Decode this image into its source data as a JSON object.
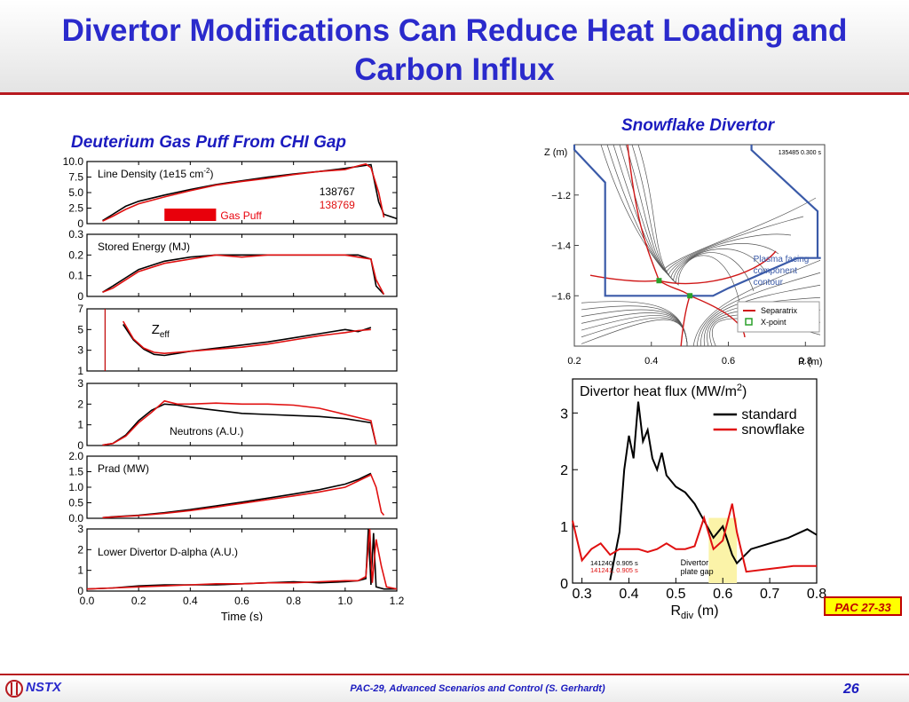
{
  "slide": {
    "title_line1": "Divertor Modifications Can Reduce Heat Loading and",
    "title_line2": "Carbon Influx",
    "left_heading": "Deuterium Gas Puff From CHI Gap",
    "right_heading": "Snowflake Divertor",
    "badge": "PAC 27-33",
    "footer_logo": "NSTX",
    "footer_text": "PAC-29, Advanced Scenarios and Control (S. Gerhardt)",
    "page_number": "26"
  },
  "colors": {
    "black_trace": "#000000",
    "red_trace": "#e01010",
    "title": "#2a2acc",
    "accent": "#b7191f",
    "contour": "#3a5aa8"
  },
  "chart_data": [
    {
      "type": "line",
      "id": "line-density",
      "title": "Line Density (1e15 cm",
      "title_superscript": "-2",
      "title_suffix": ")",
      "ylim": [
        0,
        10
      ],
      "yticks": [
        "10.0",
        "7.5",
        "5.0",
        "2.5",
        "0"
      ],
      "ytick_values": [
        10,
        7.5,
        5,
        2.5,
        0
      ],
      "annotation": "Gas Puff",
      "gas_puff_range": [
        0.3,
        0.5
      ],
      "legend": [
        "138767",
        "138769"
      ],
      "series": [
        {
          "name": "138767",
          "color": "#000000",
          "x": [
            0.06,
            0.1,
            0.15,
            0.2,
            0.3,
            0.4,
            0.5,
            0.6,
            0.7,
            0.8,
            0.9,
            1.0,
            1.05,
            1.1,
            1.13,
            1.15,
            1.2
          ],
          "y": [
            0.5,
            1.5,
            2.8,
            3.6,
            4.6,
            5.5,
            6.3,
            6.9,
            7.5,
            8.0,
            8.4,
            8.9,
            9.2,
            9.5,
            3.5,
            1.5,
            0.8
          ]
        },
        {
          "name": "138769",
          "color": "#e01010",
          "x": [
            0.06,
            0.1,
            0.15,
            0.2,
            0.3,
            0.4,
            0.5,
            0.6,
            0.7,
            0.8,
            0.9,
            1.0,
            1.05,
            1.08,
            1.1,
            1.13,
            1.15
          ],
          "y": [
            0.4,
            1.2,
            2.3,
            3.2,
            4.3,
            5.3,
            6.2,
            6.8,
            7.3,
            7.9,
            8.4,
            8.7,
            9.3,
            9.6,
            9.0,
            5.0,
            1.0
          ]
        }
      ]
    },
    {
      "type": "line",
      "id": "stored-energy",
      "title": "Stored Energy (MJ)",
      "ylim": [
        0,
        0.3
      ],
      "yticks": [
        "0.3",
        "0.2",
        "0.1",
        "0"
      ],
      "ytick_values": [
        0.3,
        0.2,
        0.1,
        0
      ],
      "series": [
        {
          "name": "138767",
          "color": "#000000",
          "x": [
            0.06,
            0.1,
            0.15,
            0.2,
            0.3,
            0.4,
            0.5,
            0.6,
            0.7,
            0.8,
            0.9,
            1.0,
            1.05,
            1.1,
            1.12,
            1.15
          ],
          "y": [
            0.02,
            0.05,
            0.09,
            0.13,
            0.17,
            0.19,
            0.2,
            0.2,
            0.2,
            0.2,
            0.2,
            0.2,
            0.2,
            0.18,
            0.05,
            0.01
          ]
        },
        {
          "name": "138769",
          "color": "#e01010",
          "x": [
            0.06,
            0.1,
            0.15,
            0.2,
            0.3,
            0.4,
            0.5,
            0.6,
            0.7,
            0.8,
            0.9,
            1.0,
            1.05,
            1.1,
            1.12,
            1.15
          ],
          "y": [
            0.02,
            0.04,
            0.08,
            0.12,
            0.16,
            0.18,
            0.2,
            0.19,
            0.2,
            0.2,
            0.2,
            0.2,
            0.19,
            0.18,
            0.08,
            0.01
          ]
        }
      ]
    },
    {
      "type": "line",
      "id": "zeff",
      "title": "Z",
      "title_subscript": "eff",
      "ylim": [
        1,
        7
      ],
      "yticks": [
        "7",
        "5",
        "3",
        "1"
      ],
      "ytick_values": [
        7,
        5,
        3,
        1
      ],
      "series": [
        {
          "name": "138767",
          "color": "#000000",
          "x": [
            0.14,
            0.18,
            0.22,
            0.26,
            0.3,
            0.35,
            0.4,
            0.5,
            0.6,
            0.7,
            0.8,
            0.9,
            1.0,
            1.05,
            1.1
          ],
          "y": [
            5.5,
            4.0,
            3.1,
            2.6,
            2.5,
            2.7,
            2.9,
            3.2,
            3.5,
            3.8,
            4.2,
            4.6,
            5.0,
            4.8,
            5.2
          ]
        },
        {
          "name": "138769",
          "color": "#e01010",
          "x": [
            0.14,
            0.18,
            0.22,
            0.26,
            0.3,
            0.35,
            0.4,
            0.5,
            0.6,
            0.7,
            0.8,
            0.9,
            1.0,
            1.05,
            1.1
          ],
          "y": [
            5.8,
            4.1,
            3.2,
            2.8,
            2.7,
            2.8,
            2.9,
            3.1,
            3.3,
            3.6,
            4.0,
            4.4,
            4.7,
            4.9,
            5.0
          ]
        }
      ]
    },
    {
      "type": "line",
      "id": "neutrons",
      "title": "Neutrons (A.U.)",
      "ylim": [
        0,
        3
      ],
      "yticks": [
        "3",
        "2",
        "1",
        "0"
      ],
      "ytick_values": [
        3,
        2,
        1,
        0
      ],
      "series": [
        {
          "name": "138767",
          "color": "#000000",
          "x": [
            0.06,
            0.1,
            0.15,
            0.2,
            0.25,
            0.3,
            0.35,
            0.4,
            0.5,
            0.6,
            0.7,
            0.8,
            0.9,
            1.0,
            1.05,
            1.1,
            1.12
          ],
          "y": [
            0.02,
            0.1,
            0.5,
            1.2,
            1.7,
            2.0,
            1.95,
            1.85,
            1.7,
            1.55,
            1.5,
            1.45,
            1.4,
            1.3,
            1.2,
            1.1,
            0.05
          ]
        },
        {
          "name": "138769",
          "color": "#e01010",
          "x": [
            0.06,
            0.1,
            0.15,
            0.2,
            0.25,
            0.3,
            0.35,
            0.4,
            0.5,
            0.6,
            0.7,
            0.8,
            0.9,
            1.0,
            1.05,
            1.1,
            1.12
          ],
          "y": [
            0.02,
            0.1,
            0.45,
            1.1,
            1.6,
            2.15,
            2.0,
            2.0,
            2.05,
            2.0,
            2.0,
            1.95,
            1.8,
            1.5,
            1.35,
            1.2,
            0.05
          ]
        }
      ]
    },
    {
      "type": "line",
      "id": "prad",
      "title": "Prad (MW)",
      "ylim": [
        0,
        2
      ],
      "yticks": [
        "2.0",
        "1.5",
        "1.0",
        "0.5",
        "0.0"
      ],
      "ytick_values": [
        2,
        1.5,
        1,
        0.5,
        0
      ],
      "series": [
        {
          "name": "138767",
          "color": "#000000",
          "x": [
            0.06,
            0.1,
            0.2,
            0.3,
            0.4,
            0.5,
            0.6,
            0.7,
            0.8,
            0.9,
            1.0,
            1.05,
            1.1
          ],
          "y": [
            0.02,
            0.05,
            0.1,
            0.18,
            0.28,
            0.4,
            0.52,
            0.65,
            0.78,
            0.92,
            1.1,
            1.25,
            1.45
          ]
        },
        {
          "name": "138769",
          "color": "#e01010",
          "x": [
            0.06,
            0.1,
            0.2,
            0.3,
            0.4,
            0.5,
            0.6,
            0.7,
            0.8,
            0.9,
            1.0,
            1.05,
            1.1,
            1.12,
            1.14,
            1.15
          ],
          "y": [
            0.02,
            0.04,
            0.09,
            0.16,
            0.25,
            0.36,
            0.48,
            0.6,
            0.72,
            0.85,
            1.0,
            1.2,
            1.4,
            1.0,
            0.2,
            0.1
          ]
        }
      ]
    },
    {
      "type": "line",
      "id": "d-alpha",
      "title": "Lower Divertor D-alpha (A.U.)",
      "ylim": [
        0,
        3
      ],
      "yticks": [
        "3",
        "2",
        "1",
        "0"
      ],
      "ytick_values": [
        3,
        2,
        1,
        0
      ],
      "xlim": [
        0,
        1.2
      ],
      "xticks": [
        "0.0",
        "0.2",
        "0.4",
        "0.6",
        "0.8",
        "1.0",
        "1.2"
      ],
      "xtick_values": [
        0,
        0.2,
        0.4,
        0.6,
        0.8,
        1.0,
        1.2
      ],
      "xlabel": "Time (s)",
      "series": [
        {
          "name": "138767",
          "color": "#000000",
          "x": [
            0.0,
            0.1,
            0.2,
            0.3,
            0.4,
            0.5,
            0.6,
            0.7,
            0.8,
            0.9,
            1.0,
            1.05,
            1.08,
            1.09,
            1.1,
            1.11,
            1.12,
            1.15,
            1.2
          ],
          "y": [
            0.1,
            0.15,
            0.25,
            0.3,
            0.3,
            0.3,
            0.35,
            0.4,
            0.45,
            0.4,
            0.45,
            0.5,
            0.6,
            3.0,
            0.3,
            2.8,
            0.2,
            0.1,
            0.1
          ]
        },
        {
          "name": "138769",
          "color": "#e01010",
          "x": [
            0.0,
            0.1,
            0.2,
            0.3,
            0.4,
            0.5,
            0.6,
            0.7,
            0.8,
            0.9,
            1.0,
            1.05,
            1.08,
            1.095,
            1.105,
            1.12,
            1.14,
            1.16,
            1.2
          ],
          "y": [
            0.1,
            0.15,
            0.2,
            0.25,
            0.3,
            0.35,
            0.35,
            0.4,
            0.4,
            0.45,
            0.5,
            0.5,
            0.7,
            3.0,
            0.4,
            2.5,
            1.2,
            0.2,
            0.1
          ]
        }
      ]
    },
    {
      "type": "line",
      "id": "snowflake-equilibrium",
      "shot_label": "135485 0.300 s",
      "xlabel": "R (m)",
      "ylabel": "Z (m)",
      "xlim": [
        0.2,
        0.85
      ],
      "ylim": [
        -1.8,
        -1.0
      ],
      "xticks": [
        "0.2",
        "0.4",
        "0.6",
        "0.8"
      ],
      "xtick_values": [
        0.2,
        0.4,
        0.6,
        0.8
      ],
      "yticks": [
        "−1.2",
        "−1.4",
        "−1.6"
      ],
      "ytick_values": [
        -1.2,
        -1.4,
        -1.6
      ],
      "annotation": "Plasma facing component contour",
      "legend": [
        "Separatrix",
        "X-point"
      ],
      "xpoints": [
        {
          "x": 0.42,
          "y": -1.54
        },
        {
          "x": 0.5,
          "y": -1.6
        }
      ]
    },
    {
      "type": "line",
      "id": "heat-flux",
      "title": "Divertor heat flux (MW/m",
      "title_superscript": "2",
      "title_suffix": ")",
      "xlabel": "R",
      "xlabel_subscript": "div",
      "xlabel_suffix": " (m)",
      "xlim": [
        0.28,
        0.8
      ],
      "ylim": [
        0,
        3.6
      ],
      "xticks": [
        "0.3",
        "0.4",
        "0.5",
        "0.6",
        "0.7",
        "0.8"
      ],
      "xtick_values": [
        0.3,
        0.4,
        0.5,
        0.6,
        0.7,
        0.8
      ],
      "yticks": [
        "3",
        "2",
        "1",
        "0"
      ],
      "ytick_values": [
        3,
        2,
        1,
        0
      ],
      "legend": [
        "standard",
        "snowflake"
      ],
      "shot_black": "141240, 0.905 s",
      "shot_red": "141241, 0.905 s",
      "gap_label_1": "Divertor",
      "gap_label_2": "plate gap",
      "gap_range": [
        0.57,
        0.63
      ],
      "series": [
        {
          "name": "standard",
          "color": "#000000",
          "x": [
            0.36,
            0.38,
            0.39,
            0.4,
            0.41,
            0.42,
            0.43,
            0.44,
            0.45,
            0.46,
            0.47,
            0.48,
            0.5,
            0.52,
            0.54,
            0.56,
            0.58,
            0.6,
            0.62,
            0.63,
            0.66,
            0.7,
            0.74,
            0.78,
            0.8
          ],
          "y": [
            0.05,
            0.9,
            2.0,
            2.6,
            2.2,
            3.2,
            2.5,
            2.7,
            2.2,
            2.0,
            2.3,
            1.9,
            1.7,
            1.6,
            1.4,
            1.1,
            0.8,
            1.0,
            0.5,
            0.35,
            0.6,
            0.7,
            0.8,
            0.95,
            0.85
          ]
        },
        {
          "name": "snowflake",
          "color": "#e01010",
          "x": [
            0.28,
            0.3,
            0.32,
            0.34,
            0.36,
            0.38,
            0.4,
            0.42,
            0.44,
            0.46,
            0.48,
            0.5,
            0.52,
            0.54,
            0.56,
            0.58,
            0.6,
            0.62,
            0.63,
            0.65,
            0.7,
            0.75,
            0.8
          ],
          "y": [
            1.1,
            0.4,
            0.6,
            0.7,
            0.5,
            0.6,
            0.6,
            0.6,
            0.55,
            0.6,
            0.7,
            0.6,
            0.6,
            0.65,
            1.15,
            0.6,
            0.75,
            1.4,
            0.9,
            0.2,
            0.25,
            0.3,
            0.3
          ]
        }
      ]
    }
  ]
}
